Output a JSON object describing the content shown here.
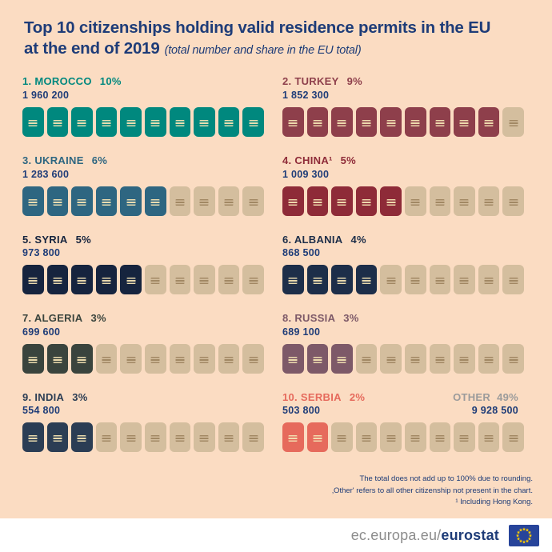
{
  "title": {
    "line1": "Top 10 citizenships holding valid residence permits in the EU",
    "line2": "at the end of 2019",
    "subtitle": "(total number and share in the EU total)"
  },
  "colors": {
    "background": "#fbdcc2",
    "title_blue": "#1e3c78",
    "number_blue": "#1e3c78",
    "empty_passport": "#d4be9e",
    "footer_url_gray": "#8c8c8c",
    "eu_flag_blue": "#27449a",
    "eu_flag_star_yellow": "#ffcc00"
  },
  "chart_data": {
    "type": "pictogram-bar",
    "icon": "passport",
    "icons_per_entry": 10,
    "percent_per_icon": 1,
    "empty_color": "#d4be9e",
    "legend_position": "none",
    "entries": [
      {
        "rank": "1.",
        "country": "MOROCCO",
        "share": "10%",
        "share_pct": 10,
        "total_label": "1 960 200",
        "total": 1960200,
        "filled_icons": 10,
        "color": "#00887e"
      },
      {
        "rank": "2.",
        "country": "TURKEY",
        "share": "9%",
        "share_pct": 9,
        "total_label": "1 852 300",
        "total": 1852300,
        "filled_icons": 9,
        "color": "#8e3f4b"
      },
      {
        "rank": "3.",
        "country": "UKRAINE",
        "share": "6%",
        "share_pct": 6,
        "total_label": "1 283 600",
        "total": 1283600,
        "filled_icons": 6,
        "color": "#2e6681"
      },
      {
        "rank": "4.",
        "country": "CHINA¹",
        "share": "5%",
        "share_pct": 5,
        "total_label": "1 009 300",
        "total": 1009300,
        "filled_icons": 5,
        "color": "#8e2b38"
      },
      {
        "rank": "5.",
        "country": "SYRIA",
        "share": "5%",
        "share_pct": 5,
        "total_label": "973 800",
        "total": 973800,
        "filled_icons": 5,
        "color": "#16243e"
      },
      {
        "rank": "6.",
        "country": "ALBANIA",
        "share": "4%",
        "share_pct": 4,
        "total_label": "868 500",
        "total": 868500,
        "filled_icons": 4,
        "color": "#1d2e49"
      },
      {
        "rank": "7.",
        "country": "ALGERIA",
        "share": "3%",
        "share_pct": 3,
        "total_label": "699 600",
        "total": 699600,
        "filled_icons": 3,
        "color": "#3a443d"
      },
      {
        "rank": "8.",
        "country": "RUSSIA",
        "share": "3%",
        "share_pct": 3,
        "total_label": "689 100",
        "total": 689100,
        "filled_icons": 3,
        "color": "#7d5968"
      },
      {
        "rank": "9.",
        "country": "INDIA",
        "share": "3%",
        "share_pct": 3,
        "total_label": "554 800",
        "total": 554800,
        "filled_icons": 3,
        "color": "#2b3d54"
      },
      {
        "rank": "10.",
        "country": "SERBIA",
        "share": "2%",
        "share_pct": 2,
        "total_label": "503 800",
        "total": 503800,
        "filled_icons": 2,
        "color": "#e66a5c"
      }
    ],
    "other": {
      "label": "OTHER",
      "share": "49%",
      "share_pct": 49,
      "total_label": "9 928 500",
      "total": 9928500,
      "color": "#9b9b9b"
    }
  },
  "footnotes": [
    "The total does not add up to 100% due to rounding.",
    "‚Other' refers to all other citizenship not present in the chart.",
    "¹ Including Hong Kong."
  ],
  "footer": {
    "url_prefix": "ec.europa.eu/",
    "url_bold": "eurostat"
  }
}
